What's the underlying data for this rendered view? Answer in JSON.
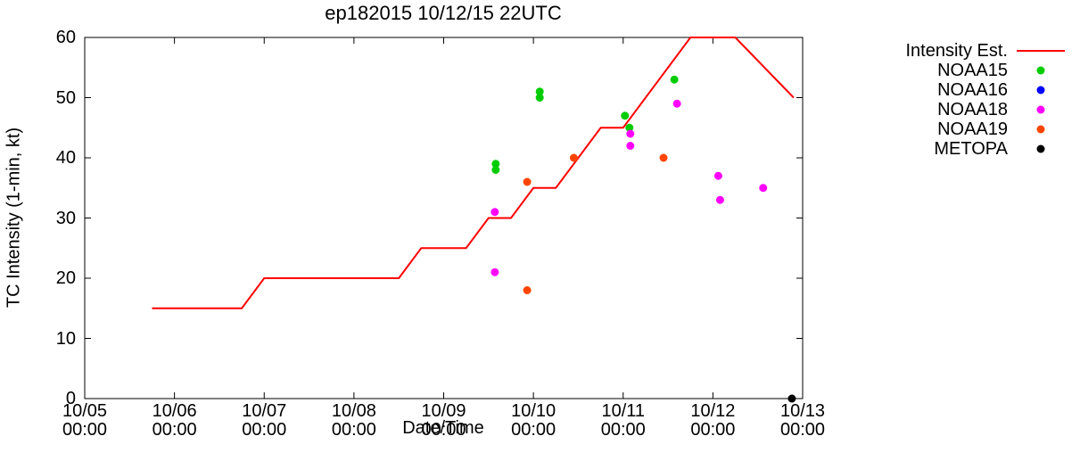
{
  "chart_data": {
    "type": "line",
    "title": "ep182015 10/12/15 22UTC",
    "xlabel": "Date/Time",
    "ylabel": "TC Intensity (1-min, kt)",
    "grid": false,
    "legend_position": "right of plot",
    "x_axis": {
      "unit": "days since 10/05 00:00",
      "min": 0,
      "max": 8,
      "ticks": [
        {
          "pos": 0,
          "date": "10/05",
          "time": "00:00"
        },
        {
          "pos": 1,
          "date": "10/06",
          "time": "00:00"
        },
        {
          "pos": 2,
          "date": "10/07",
          "time": "00:00"
        },
        {
          "pos": 3,
          "date": "10/08",
          "time": "00:00"
        },
        {
          "pos": 4,
          "date": "10/09",
          "time": "00:00"
        },
        {
          "pos": 5,
          "date": "10/10",
          "time": "00:00"
        },
        {
          "pos": 6,
          "date": "10/11",
          "time": "00:00"
        },
        {
          "pos": 7,
          "date": "10/12",
          "time": "00:00"
        },
        {
          "pos": 8,
          "date": "10/13",
          "time": "00:00"
        }
      ]
    },
    "y_axis": {
      "min": 0,
      "max": 60,
      "ticks": [
        0,
        10,
        20,
        30,
        40,
        50,
        60
      ]
    },
    "series": [
      {
        "name": "Intensity Est.",
        "style": "line",
        "color": "#ff0000",
        "points": [
          [
            0.75,
            15
          ],
          [
            1.75,
            15
          ],
          [
            2.0,
            20
          ],
          [
            3.5,
            20
          ],
          [
            3.75,
            25
          ],
          [
            4.25,
            25
          ],
          [
            4.5,
            30
          ],
          [
            4.75,
            30
          ],
          [
            5.0,
            35
          ],
          [
            5.25,
            35
          ],
          [
            5.5,
            40
          ],
          [
            5.75,
            45
          ],
          [
            6.0,
            45
          ],
          [
            6.75,
            60
          ],
          [
            7.25,
            60
          ],
          [
            7.9,
            50
          ]
        ]
      },
      {
        "name": "NOAA15",
        "style": "points",
        "color": "#00cc00",
        "points": [
          [
            4.58,
            39
          ],
          [
            4.58,
            38
          ],
          [
            5.07,
            51
          ],
          [
            5.07,
            50
          ],
          [
            6.02,
            47
          ],
          [
            6.07,
            45
          ],
          [
            6.57,
            53
          ]
        ]
      },
      {
        "name": "NOAA16",
        "style": "points",
        "color": "#0000ff",
        "points": []
      },
      {
        "name": "NOAA18",
        "style": "points",
        "color": "#ff00ff",
        "points": [
          [
            4.57,
            31
          ],
          [
            4.57,
            21
          ],
          [
            6.08,
            44
          ],
          [
            6.08,
            42
          ],
          [
            6.6,
            49
          ],
          [
            7.06,
            37
          ],
          [
            7.08,
            33
          ],
          [
            7.56,
            35
          ]
        ]
      },
      {
        "name": "NOAA19",
        "style": "points",
        "color": "#ff4500",
        "points": [
          [
            4.93,
            36
          ],
          [
            4.93,
            18
          ],
          [
            5.45,
            40
          ],
          [
            6.45,
            40
          ]
        ]
      },
      {
        "name": "METOPA",
        "style": "points",
        "color": "#000000",
        "points": [
          [
            7.88,
            0
          ]
        ]
      }
    ]
  }
}
